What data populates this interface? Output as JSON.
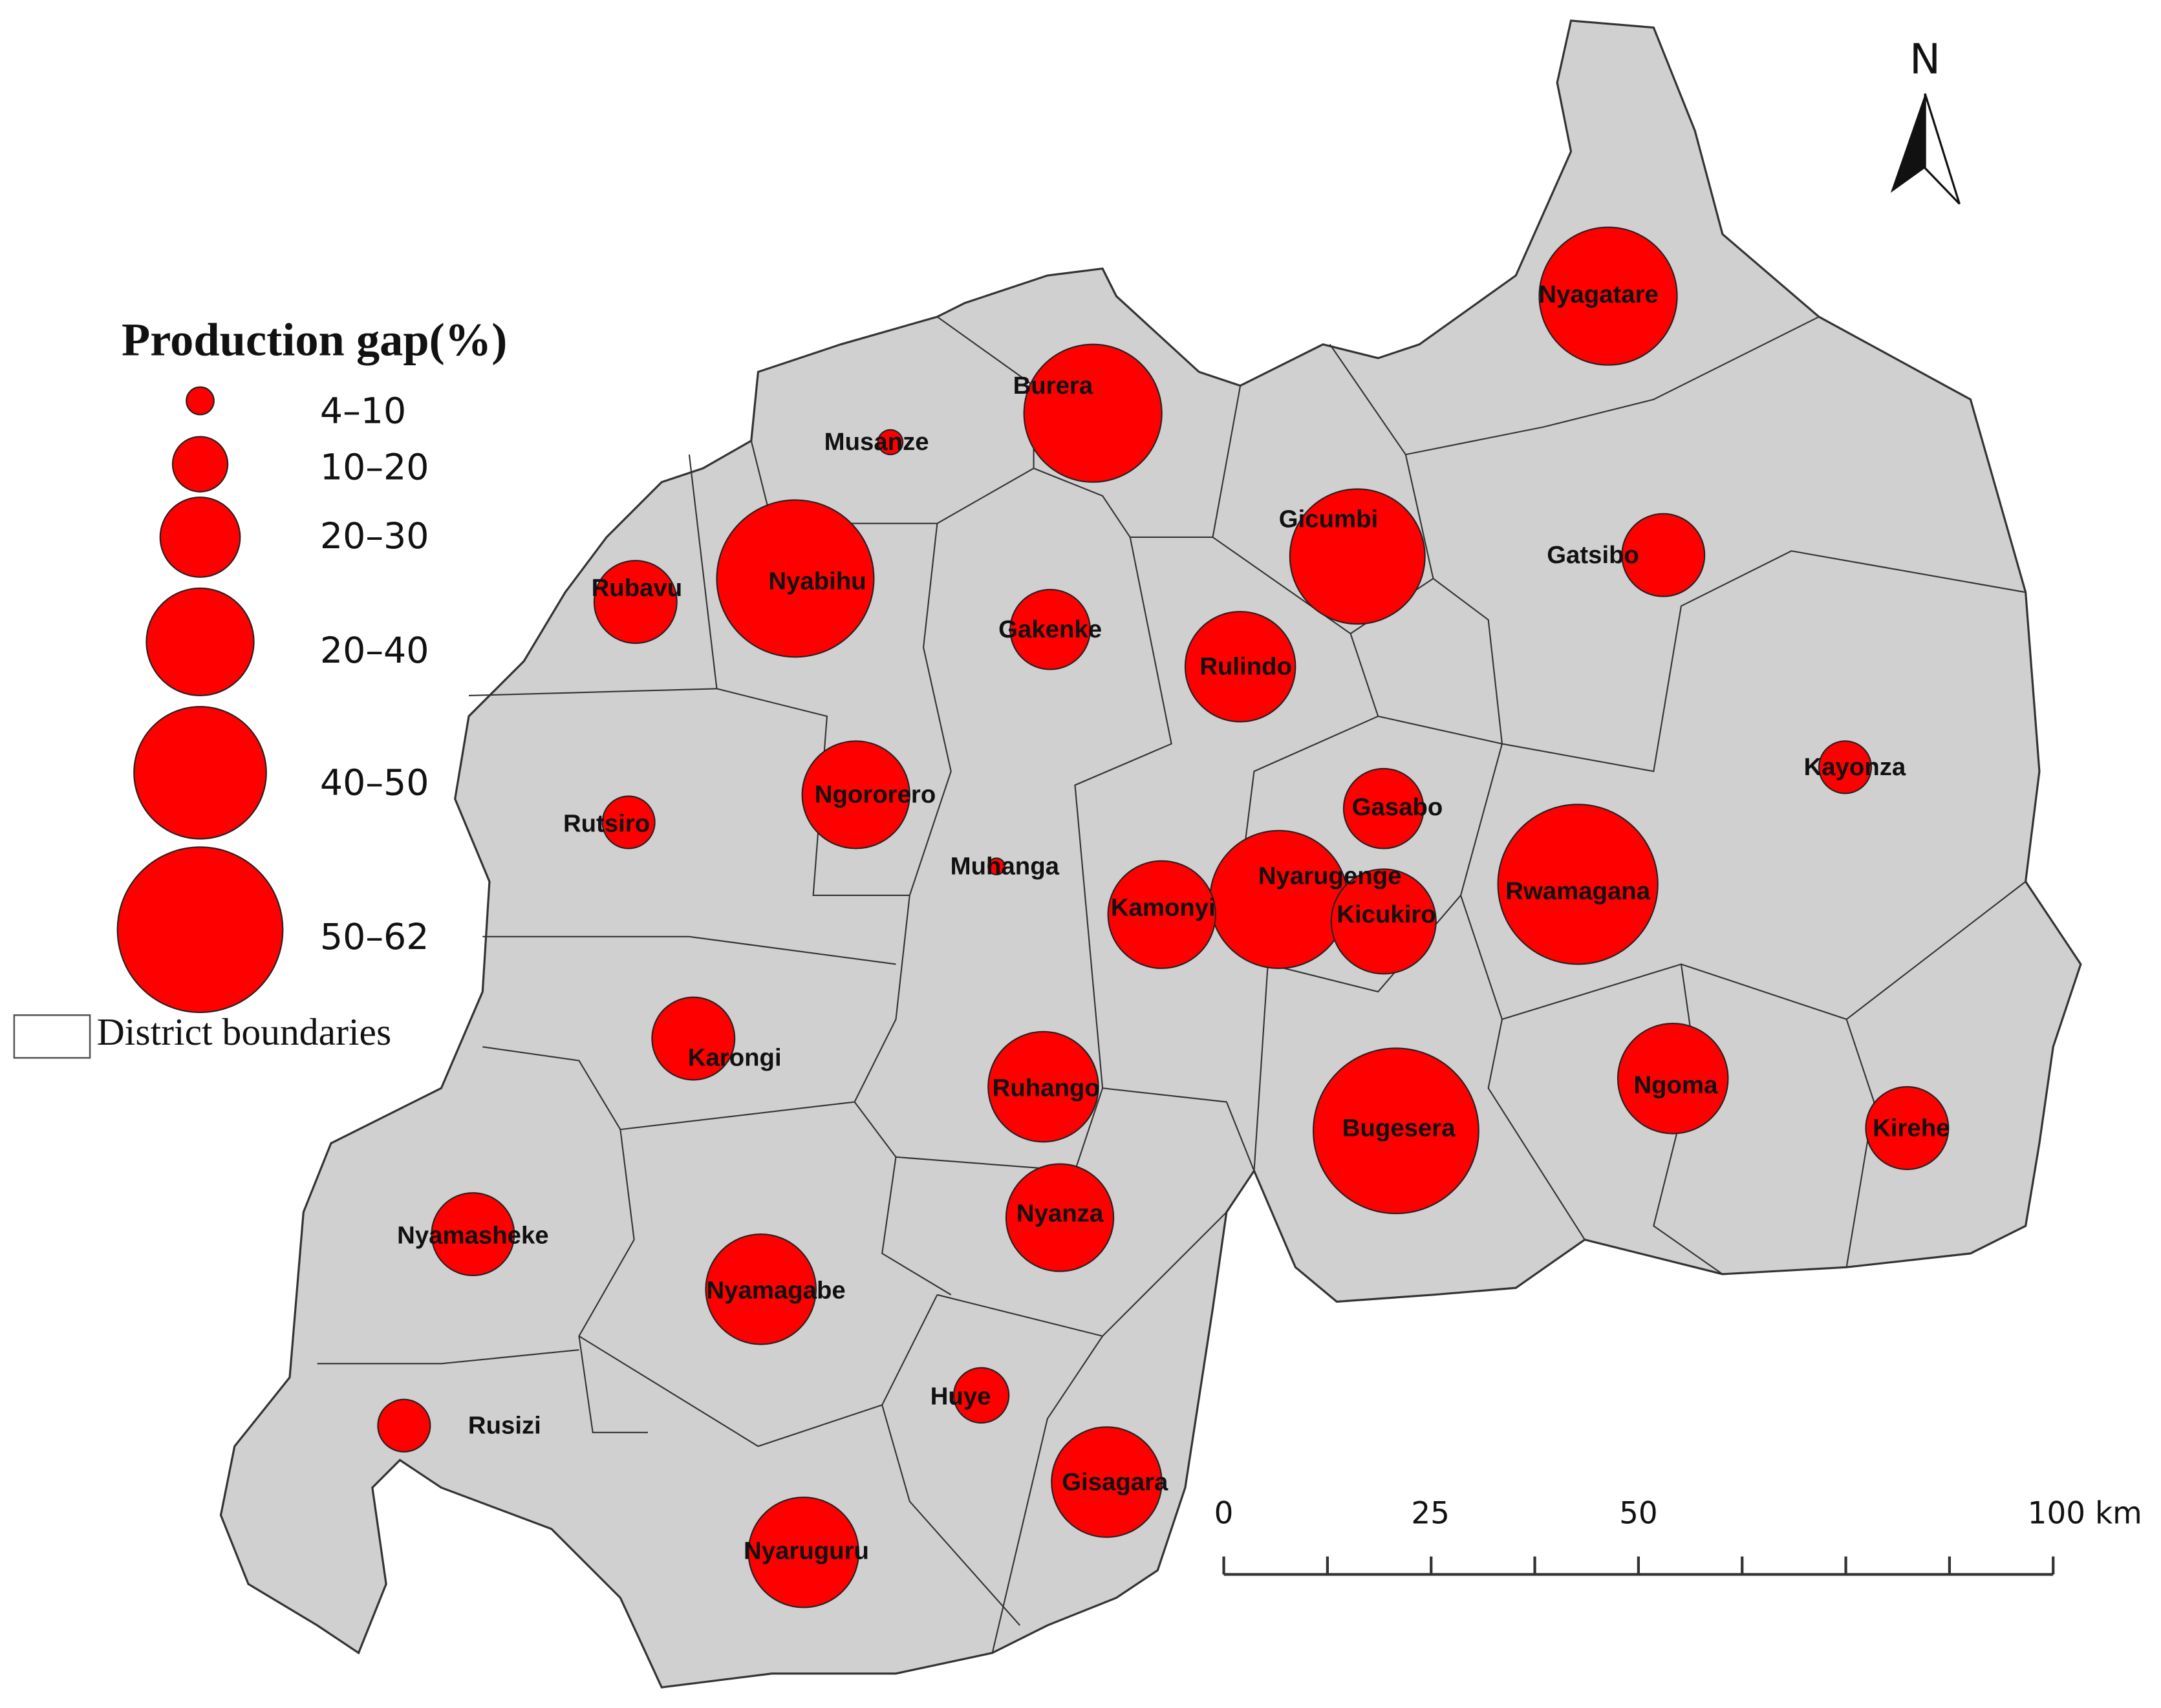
{
  "legend": {
    "title": "Production gap(%)",
    "classes": [
      "4–10",
      "10–20",
      "20–30",
      "20–40",
      "40–50",
      "50–62"
    ],
    "boundary": "District boundaries"
  },
  "districts": [
    "Nyagatare",
    "Burera",
    "Musanze",
    "Gicumbi",
    "Gatsibo",
    "Rubavu",
    "Nyabihu",
    "Gakenke",
    "Rulindo",
    "Kayonza",
    "Rutsiro",
    "Ngororero",
    "Muhanga",
    "Gasabo",
    "Nyarugenge",
    "Kicukiro",
    "Rwamagana",
    "Kamonyi",
    "Karongi",
    "Ruhango",
    "Bugesera",
    "Ngoma",
    "Kirehe",
    "Nyamasheke",
    "Nyanza",
    "Nyamagabe",
    "Huye",
    "Rusizi",
    "Gisagara",
    "Nyaruguru"
  ],
  "north": "N",
  "scale_bar": [
    "0",
    "25",
    "50",
    "100 km"
  ]
}
